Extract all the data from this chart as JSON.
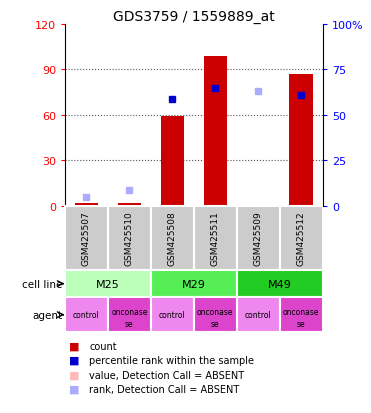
{
  "title": "GDS3759 / 1559889_at",
  "samples": [
    "GSM425507",
    "GSM425510",
    "GSM425508",
    "GSM425511",
    "GSM425509",
    "GSM425512"
  ],
  "cell_configs": [
    {
      "label": "M25",
      "start": 0,
      "end": 2,
      "color": "#BBFFBB"
    },
    {
      "label": "M29",
      "start": 2,
      "end": 4,
      "color": "#55EE55"
    },
    {
      "label": "M49",
      "start": 4,
      "end": 6,
      "color": "#22CC22"
    }
  ],
  "agents": [
    "control",
    "onconase",
    "control",
    "onconase",
    "control",
    "onconase"
  ],
  "agent_color_control": "#EE88EE",
  "agent_color_onconase": "#DD44CC",
  "bar_values": [
    2,
    2,
    59,
    99,
    0,
    87
  ],
  "bar_colors": [
    "#CC0000",
    "#CC0000",
    "#CC0000",
    "#CC0000",
    "#FFBBBB",
    "#CC0000"
  ],
  "rank_values": [
    5,
    9,
    59,
    65,
    63,
    61
  ],
  "rank_colors": [
    "#AAAAFF",
    "#AAAAFF",
    "#0000CC",
    "#0000CC",
    "#AAAAFF",
    "#0000CC"
  ],
  "rank_absent": [
    true,
    true,
    false,
    false,
    true,
    false
  ],
  "ylim_left": [
    0,
    120
  ],
  "ylim_right": [
    0,
    100
  ],
  "yticks_left": [
    0,
    30,
    60,
    90,
    120
  ],
  "yticks_right": [
    0,
    25,
    50,
    75,
    100
  ],
  "ytick_labels_right": [
    "0",
    "25",
    "50",
    "75",
    "100%"
  ],
  "grid_color": "#555555",
  "legend_items": [
    {
      "label": "count",
      "color": "#CC0000"
    },
    {
      "label": "percentile rank within the sample",
      "color": "#0000CC"
    },
    {
      "label": "value, Detection Call = ABSENT",
      "color": "#FFBBBB"
    },
    {
      "label": "rank, Detection Call = ABSENT",
      "color": "#AAAAFF"
    }
  ]
}
